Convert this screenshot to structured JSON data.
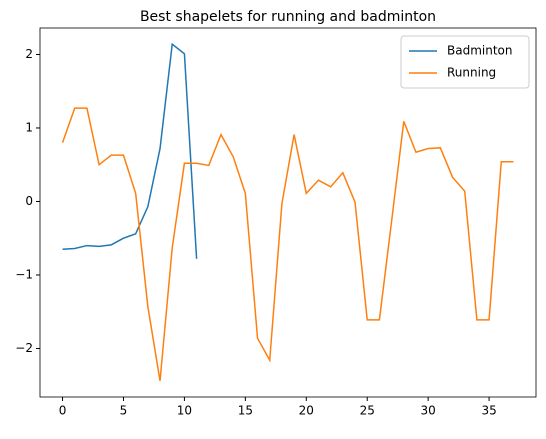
{
  "chart_data": {
    "type": "line",
    "title": "Best shapelets for running and badminton",
    "series": [
      {
        "name": "Badminton",
        "color": "#1f77b4",
        "x": [
          0,
          1,
          2,
          3,
          4,
          5,
          6,
          7,
          8,
          9,
          10,
          11
        ],
        "values": [
          -0.65,
          -0.64,
          -0.6,
          -0.61,
          -0.59,
          -0.5,
          -0.44,
          -0.07,
          0.72,
          2.14,
          2.01,
          -0.78
        ]
      },
      {
        "name": "Running",
        "color": "#ff7f0e",
        "x": [
          0,
          1,
          2,
          3,
          4,
          5,
          6,
          7,
          8,
          9,
          10,
          11,
          12,
          13,
          14,
          15,
          16,
          17,
          18,
          19,
          20,
          21,
          22,
          23,
          24,
          25,
          26,
          27,
          28,
          29,
          30,
          31,
          32,
          33,
          34,
          35,
          36,
          37
        ],
        "values": [
          0.8,
          1.27,
          1.27,
          0.5,
          0.63,
          0.63,
          0.11,
          -1.43,
          -2.44,
          -0.63,
          0.52,
          0.52,
          0.49,
          0.91,
          0.61,
          0.11,
          -1.86,
          -2.16,
          -0.03,
          0.91,
          0.11,
          0.29,
          0.2,
          0.39,
          -0.01,
          -1.61,
          -1.61,
          -0.27,
          1.09,
          0.67,
          0.72,
          0.73,
          0.33,
          0.14,
          -1.61,
          -1.61,
          0.54,
          0.54
        ]
      }
    ],
    "xlim": [
      -1.85,
      38.85
    ],
    "ylim": [
      -2.66,
      2.36
    ],
    "xticks": [
      0,
      5,
      10,
      15,
      20,
      25,
      30,
      35
    ],
    "yticks": [
      {
        "value": -2,
        "label": "−2"
      },
      {
        "value": -1,
        "label": "−1"
      },
      0,
      1,
      2
    ],
    "legend": "upper right"
  }
}
